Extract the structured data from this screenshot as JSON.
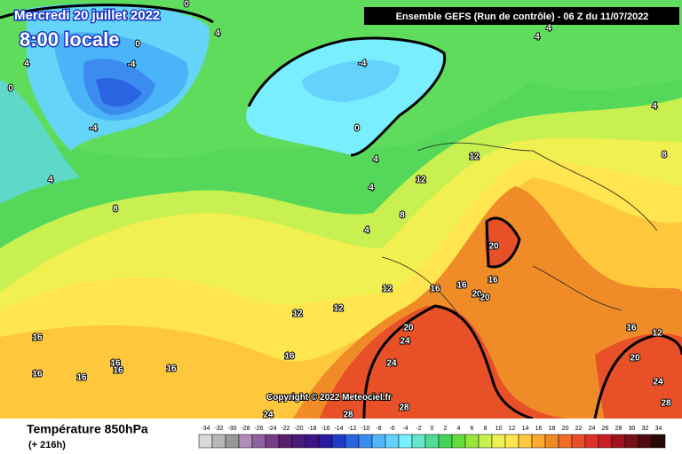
{
  "header": {
    "date": "Mercredi 20 juillet 2022",
    "time": "8:00 locale",
    "run": "Ensemble GEFS  (Run de contrôle)  -  06 Z du 11/07/2022"
  },
  "map": {
    "contour_labels": [
      "0",
      "4",
      "0",
      "-4",
      "4",
      "-4",
      "0",
      "-4",
      "0",
      "4",
      "4",
      "4",
      "4",
      "4",
      "8",
      "8",
      "4",
      "12",
      "12",
      "20",
      "12",
      "16",
      "16",
      "16",
      "20",
      "20",
      "12",
      "12",
      "20",
      "24",
      "24",
      "16",
      "16",
      "16",
      "16",
      "16",
      "16",
      "16",
      "16",
      "12",
      "20",
      "24",
      "28",
      "24",
      "28",
      "28",
      "8",
      "4"
    ],
    "copyright": "Copyright © 2022 Meteociel.fr"
  },
  "footer": {
    "title": "Température 850hPa",
    "lead": "(+ 216h)"
  },
  "scale": {
    "values": [
      -34,
      -32,
      -30,
      -28,
      -26,
      -24,
      -22,
      -20,
      -18,
      -16,
      -14,
      -12,
      -10,
      -8,
      -6,
      -4,
      -2,
      0,
      2,
      4,
      6,
      8,
      10,
      12,
      14,
      16,
      18,
      20,
      22,
      24,
      26,
      28,
      30,
      32,
      34
    ],
    "colors": [
      "#d8d8d8",
      "#b8b8b8",
      "#989898",
      "#b08cb8",
      "#9060a0",
      "#783c88",
      "#5a1e6e",
      "#4a1a7a",
      "#3c1488",
      "#2a1aa0",
      "#1e3cc8",
      "#2a64e0",
      "#3c8cf0",
      "#50b4f8",
      "#64d2fc",
      "#78f0ff",
      "#64e6c8",
      "#50dc96",
      "#46d25a",
      "#64dc3c",
      "#96e63c",
      "#c8f050",
      "#f0f050",
      "#ffe650",
      "#ffc83c",
      "#ffa832",
      "#f08c28",
      "#f06e28",
      "#e85028",
      "#dc3228",
      "#c81e28",
      "#a01420",
      "#781018",
      "#500c10",
      "#280808"
    ]
  }
}
